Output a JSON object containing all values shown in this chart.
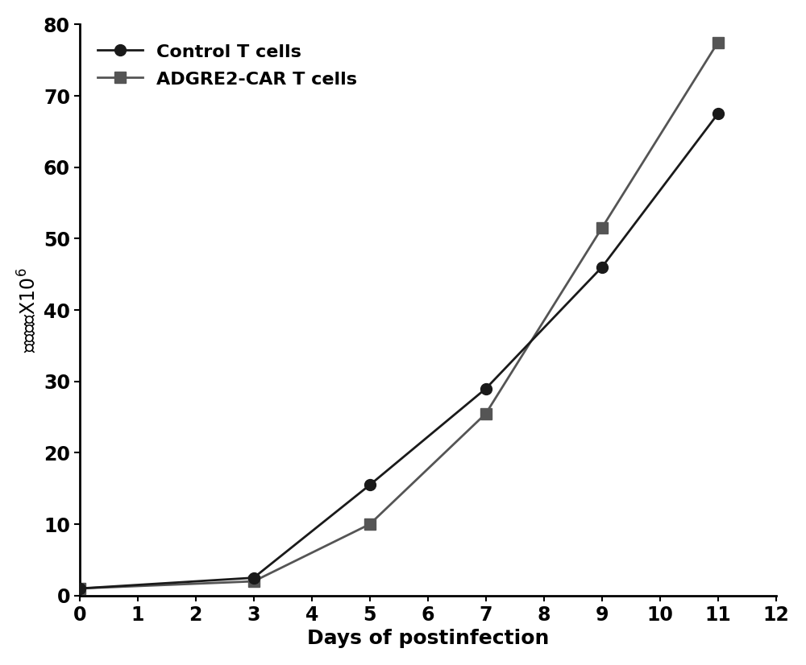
{
  "control_x": [
    0,
    3,
    5,
    7,
    9,
    11
  ],
  "control_y": [
    1,
    2.5,
    15.5,
    29,
    46,
    67.5
  ],
  "adgre2_x": [
    0,
    3,
    5,
    7,
    9,
    11
  ],
  "adgre2_y": [
    1,
    2,
    10,
    25.5,
    51.5,
    77.5
  ],
  "control_label": "Control T cells",
  "adgre2_label": "ADGRE2-CAR T cells",
  "xlabel": "Days of postinfection",
  "xlim": [
    0,
    12
  ],
  "ylim": [
    0,
    80
  ],
  "xticks": [
    0,
    1,
    2,
    3,
    4,
    5,
    6,
    7,
    8,
    9,
    10,
    11,
    12
  ],
  "yticks": [
    0,
    10,
    20,
    30,
    40,
    50,
    60,
    70,
    80
  ],
  "control_color": "#1a1a1a",
  "adgre2_color": "#555555",
  "line_width": 2.0,
  "marker_size": 10,
  "xlabel_fontsize": 18,
  "ylabel_fontsize": 17,
  "tick_fontsize": 17,
  "legend_fontsize": 16,
  "background_color": "#ffffff"
}
